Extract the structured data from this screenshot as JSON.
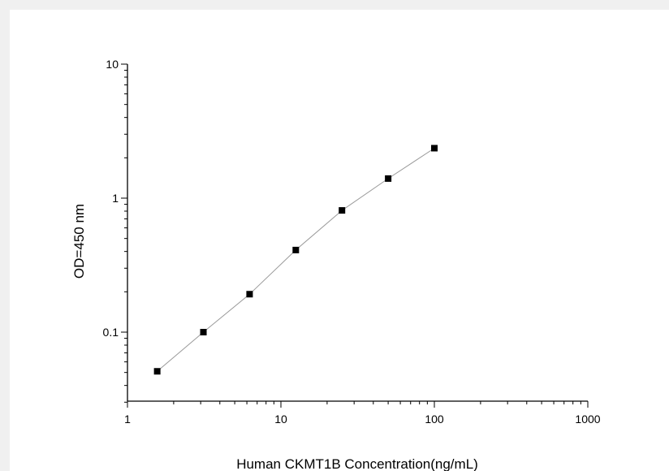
{
  "chart_data": {
    "type": "scatter",
    "title": "",
    "xlabel": "Human CKMT1B Concentration(ng/mL)",
    "ylabel": "OD=450 nm",
    "xscale": "log",
    "yscale": "log",
    "xlim": [
      1,
      1000
    ],
    "ylim": [
      0.03,
      10
    ],
    "grid": false,
    "legend": "none",
    "x_ticks": [
      "1",
      "10",
      "100",
      "1000"
    ],
    "y_ticks": [
      "0.1",
      "1",
      "10"
    ],
    "series": [
      {
        "x": [
          1.5625,
          3.125,
          6.25,
          12.5,
          25,
          50,
          100
        ],
        "y": [
          0.051,
          0.1,
          0.192,
          0.41,
          0.81,
          1.4,
          2.36
        ]
      }
    ],
    "marker_color": "#000000",
    "line_color": "#999999"
  }
}
